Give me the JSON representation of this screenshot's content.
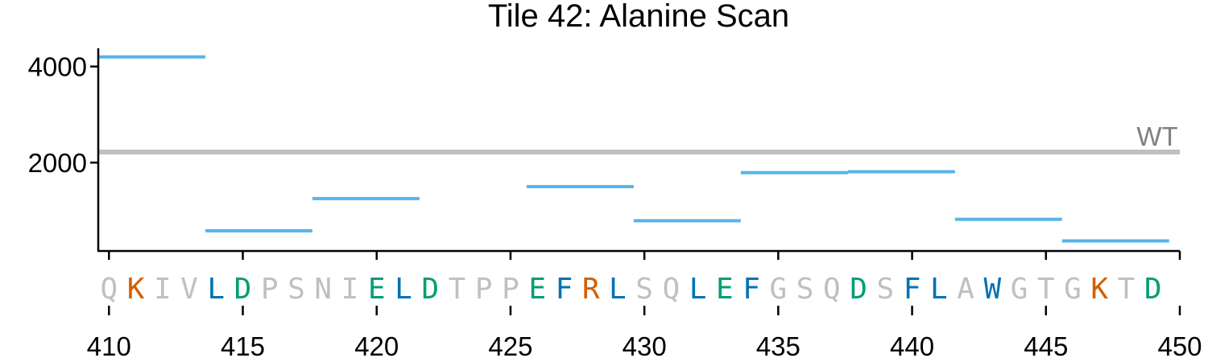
{
  "chart_data": {
    "type": "line",
    "title": "Tile 42: Alanine Scan",
    "xlabel": "",
    "ylabel": "",
    "xlim": [
      409.6,
      450
    ],
    "ylim": [
      160,
      4380
    ],
    "x_ticks": [
      410,
      415,
      420,
      425,
      430,
      435,
      440,
      445,
      450
    ],
    "y_ticks": [
      2000,
      4000
    ],
    "reference_line": {
      "label": "WT",
      "value": 2220,
      "color": "#c0c0c0"
    },
    "series": [
      {
        "color": "#56b4e9",
        "segments": [
          {
            "x_start": 409.6,
            "x_end": 413.6,
            "y": 4200
          },
          {
            "x_start": 413.6,
            "x_end": 417.6,
            "y": 580
          },
          {
            "x_start": 417.6,
            "x_end": 421.6,
            "y": 1250
          },
          {
            "x_start": 425.6,
            "x_end": 429.6,
            "y": 1500
          },
          {
            "x_start": 429.6,
            "x_end": 433.6,
            "y": 790
          },
          {
            "x_start": 433.6,
            "x_end": 437.6,
            "y": 1790
          },
          {
            "x_start": 437.6,
            "x_end": 441.6,
            "y": 1810
          },
          {
            "x_start": 441.6,
            "x_end": 445.6,
            "y": 820
          },
          {
            "x_start": 445.6,
            "x_end": 449.6,
            "y": 370
          }
        ]
      }
    ],
    "sequence": {
      "start": 410,
      "residues": [
        "Q",
        "K",
        "I",
        "V",
        "L",
        "D",
        "P",
        "S",
        "N",
        "I",
        "E",
        "L",
        "D",
        "T",
        "P",
        "P",
        "E",
        "F",
        "R",
        "L",
        "S",
        "Q",
        "L",
        "E",
        "F",
        "G",
        "S",
        "Q",
        "D",
        "S",
        "F",
        "L",
        "A",
        "W",
        "G",
        "T",
        "G",
        "K",
        "T",
        "D"
      ],
      "colors": {
        "default": "#c0c0c0",
        "K": "#d55e00",
        "R": "#d55e00",
        "D": "#009e73",
        "E": "#009e73",
        "L": "#0072b2",
        "F": "#0072b2",
        "W": "#0072b2"
      }
    }
  }
}
